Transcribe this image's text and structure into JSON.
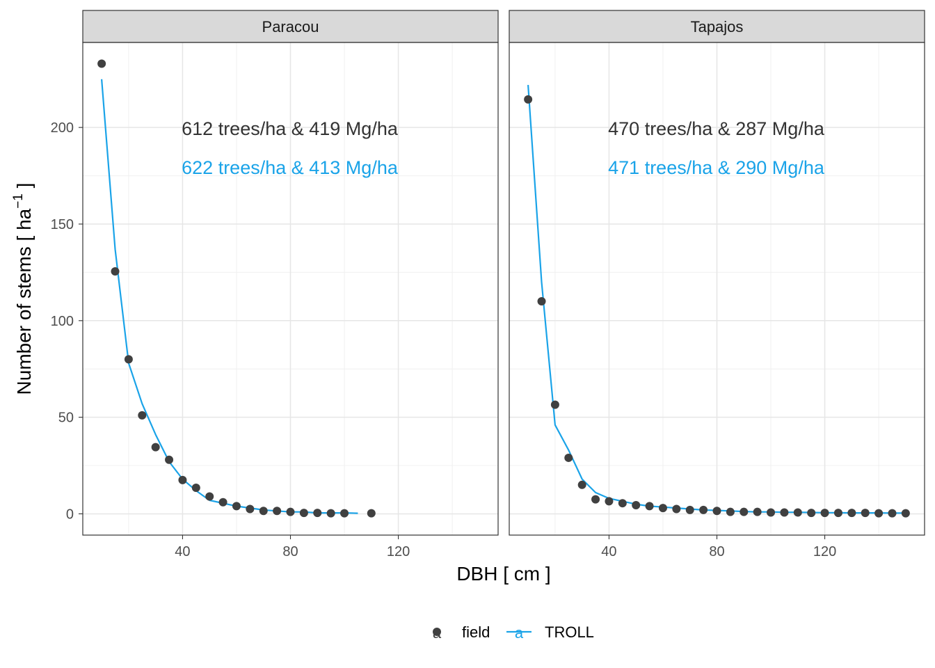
{
  "chart_data": {
    "type": "scatter",
    "xlabel": "DBH [ cm ]",
    "ylabel": "Number of stems [ ha",
    "ylabel_superscript": "−1",
    "ylabel_close": " ]",
    "xlim": [
      3,
      157
    ],
    "ylim": [
      -11,
      244
    ],
    "x_ticks": [
      40,
      80,
      120
    ],
    "y_ticks": [
      0,
      50,
      100,
      150,
      200
    ],
    "x_tick_labels": [
      "40",
      "80",
      "120"
    ],
    "y_tick_labels": [
      "0",
      "50",
      "100",
      "150",
      "200"
    ],
    "grid": true,
    "legend_position": "bottom",
    "legend": [
      {
        "label": "field",
        "glyph": "a",
        "mark": "point",
        "color": "#404040"
      },
      {
        "label": "TROLL",
        "glyph": "a",
        "mark": "line",
        "color": "#1aa3e8"
      }
    ],
    "colors": {
      "field": "#404040",
      "TROLL": "#1aa3e8"
    },
    "panels": [
      {
        "name": "Paracou",
        "annotations": [
          {
            "text": "612 trees/ha & 419 Mg/ha",
            "series": "field"
          },
          {
            "text": "622 trees/ha & 413 Mg/ha",
            "series": "TROLL"
          }
        ],
        "series": [
          {
            "name": "field",
            "mark": "point",
            "x": [
              10,
              15,
              20,
              25,
              30,
              35,
              40,
              45,
              50,
              55,
              60,
              65,
              70,
              75,
              80,
              85,
              90,
              95,
              100,
              110
            ],
            "y": [
              233,
              125.5,
              80,
              51,
              34.5,
              28,
              17.5,
              13.5,
              9,
              6,
              4,
              2.5,
              1.5,
              1.5,
              1,
              0.5,
              0.5,
              0.3,
              0.3,
              0.3
            ]
          },
          {
            "name": "TROLL",
            "mark": "line",
            "x": [
              10,
              15,
              20,
              25,
              30,
              35,
              40,
              45,
              50,
              55,
              60,
              65,
              70,
              75,
              80,
              85,
              90,
              95,
              100,
              105
            ],
            "y": [
              225,
              137,
              78,
              57,
              41,
              27,
              18,
              12,
              7,
              5.5,
              4,
              3,
              2,
              1.5,
              1,
              1,
              0.5,
              0.5,
              0.5,
              0.3
            ]
          }
        ]
      },
      {
        "name": "Tapajos",
        "annotations": [
          {
            "text": "470 trees/ha & 287 Mg/ha",
            "series": "field"
          },
          {
            "text": "471 trees/ha & 290 Mg/ha",
            "series": "TROLL"
          }
        ],
        "series": [
          {
            "name": "field",
            "mark": "point",
            "x": [
              10,
              15,
              20,
              25,
              30,
              35,
              40,
              45,
              50,
              55,
              60,
              65,
              70,
              75,
              80,
              85,
              90,
              95,
              100,
              105,
              110,
              115,
              120,
              125,
              130,
              135,
              140,
              145,
              150
            ],
            "y": [
              214.5,
              110,
              56.5,
              29,
              15,
              7.5,
              6.5,
              5.5,
              4.5,
              4,
              3,
              2.5,
              2,
              2,
              1.5,
              1,
              1,
              1,
              0.7,
              0.7,
              0.7,
              0.5,
              0.5,
              0.5,
              0.5,
              0.5,
              0.3,
              0.3,
              0.3
            ]
          },
          {
            "name": "TROLL",
            "mark": "line",
            "x": [
              10,
              15,
              20,
              25,
              30,
              35,
              40,
              45,
              50,
              55,
              60,
              65,
              70,
              75,
              80,
              85,
              90,
              95,
              100,
              105,
              110,
              115,
              120,
              125,
              130,
              135,
              140,
              145,
              150
            ],
            "y": [
              222,
              120,
              46,
              33,
              18,
              11,
              8,
              6.5,
              5,
              4,
              3.5,
              3,
              2.5,
              2,
              1.8,
              1.5,
              1.2,
              1,
              1,
              0.8,
              0.8,
              0.7,
              0.6,
              0.6,
              0.5,
              0.5,
              0.5,
              0.4,
              0.4
            ]
          }
        ]
      }
    ]
  }
}
